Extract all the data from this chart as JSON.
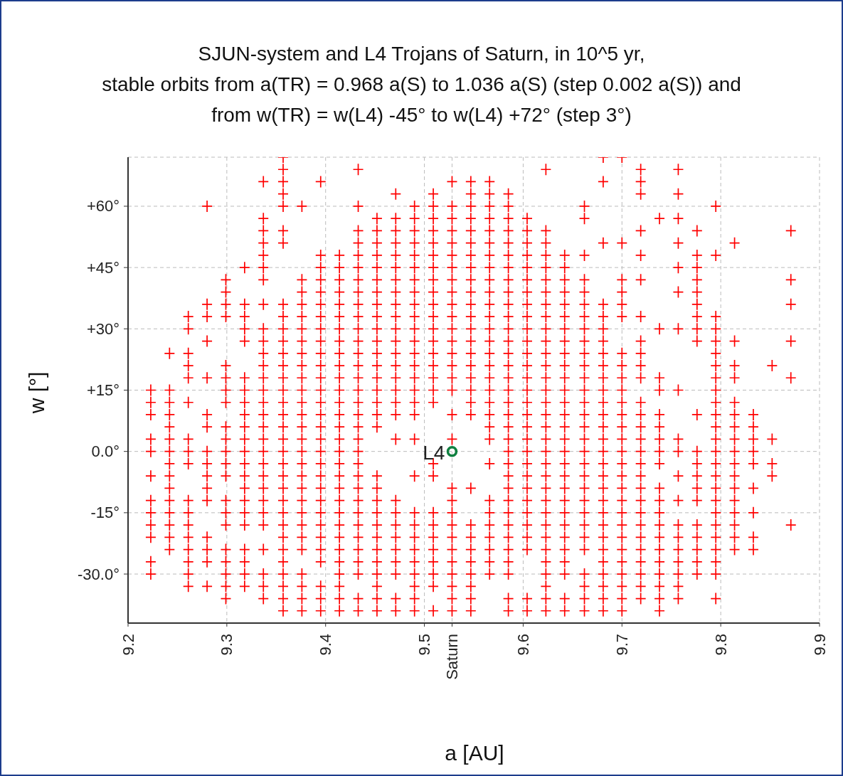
{
  "chart_data": {
    "type": "scatter",
    "title": "SJUN-system and L4 Trojans of Saturn, in 10^5 yr,\nstable orbits from a(TR) = 0.968 a(S) to 1.036 a(S) (step 0.002 a(S)) and\nfrom w(TR) = w(L4) -45° to w(L4) +72° (step 3°)",
    "xlabel": "a [AU]",
    "ylabel": "w [°]",
    "xlim": [
      9.2,
      9.9
    ],
    "xticks": [
      9.2,
      9.3,
      9.4,
      9.5,
      {
        "value": 9.528,
        "label": "Saturn"
      },
      9.6,
      9.7,
      9.8,
      9.9
    ],
    "ylim": [
      -42,
      72
    ],
    "yticks": [
      {
        "value": -30,
        "label": "-30.0°"
      },
      {
        "value": -15,
        "label": "-15°"
      },
      {
        "value": 0,
        "label": "0.0°"
      },
      {
        "value": 15,
        "label": "+15°"
      },
      {
        "value": 30,
        "label": "+30°"
      },
      {
        "value": 45,
        "label": "+45°"
      },
      {
        "value": 60,
        "label": "+60°"
      }
    ],
    "grid": true,
    "marker": "cross",
    "series": [
      {
        "color": "#ff0000",
        "x": [
          9.223,
          9.223,
          9.223,
          9.223,
          9.223,
          9.223,
          9.223,
          9.223,
          9.223,
          9.223,
          9.223,
          9.223
        ],
        "values": [
          15,
          12,
          9,
          3,
          0,
          -6,
          -12,
          -15,
          -18,
          -21,
          -27,
          -30
        ]
      },
      {
        "color": "#ff0000",
        "x": [
          9.242,
          9.242,
          9.242,
          9.242,
          9.242,
          9.242,
          9.242,
          9.242,
          9.242,
          9.242,
          9.242,
          9.242,
          9.242,
          9.242,
          9.242
        ],
        "values": [
          24,
          15,
          12,
          9,
          6,
          3,
          0,
          -3,
          -6,
          -9,
          -12,
          -15,
          -18,
          -21,
          -24
        ]
      },
      {
        "color": "#ff0000",
        "x": [
          9.261,
          9.261,
          9.261,
          9.261,
          9.261,
          9.261,
          9.261,
          9.261,
          9.261,
          9.261,
          9.261,
          9.261,
          9.261,
          9.261,
          9.261,
          9.261,
          9.261
        ],
        "values": [
          33,
          30,
          24,
          21,
          18,
          12,
          3,
          0,
          -3,
          -12,
          -15,
          -18,
          -21,
          -24,
          -27,
          -30,
          -33
        ]
      },
      {
        "color": "#ff0000",
        "x": [
          9.28,
          9.28,
          9.28,
          9.28,
          9.28,
          9.28,
          9.28,
          9.28,
          9.28,
          9.28,
          9.28,
          9.28,
          9.28,
          9.28,
          9.28,
          9.28
        ],
        "values": [
          60,
          36,
          33,
          27,
          18,
          9,
          6,
          0,
          -3,
          -6,
          -9,
          -12,
          -21,
          -24,
          -27,
          -33
        ]
      },
      {
        "color": "#ff0000",
        "x": [
          9.299,
          9.299,
          9.299,
          9.299,
          9.299,
          9.299,
          9.299,
          9.299,
          9.299,
          9.299,
          9.299,
          9.299,
          9.299,
          9.299,
          9.299,
          9.299,
          9.299,
          9.299,
          9.299,
          9.299,
          9.299
        ],
        "values": [
          42,
          39,
          36,
          33,
          21,
          18,
          15,
          12,
          6,
          3,
          0,
          -3,
          -6,
          -12,
          -15,
          -18,
          -24,
          -27,
          -30,
          -33,
          -36
        ]
      },
      {
        "color": "#ff0000",
        "x": [
          9.318,
          9.318,
          9.318,
          9.318,
          9.318,
          9.318,
          9.318,
          9.318,
          9.318,
          9.318,
          9.318,
          9.318,
          9.318,
          9.318,
          9.318,
          9.318,
          9.318,
          9.318,
          9.318,
          9.318,
          9.318,
          9.318
        ],
        "values": [
          45,
          36,
          33,
          30,
          27,
          18,
          15,
          12,
          9,
          6,
          3,
          0,
          -3,
          -6,
          -9,
          -12,
          -15,
          -18,
          -24,
          -27,
          -30,
          -33
        ]
      },
      {
        "color": "#ff0000",
        "x": [
          9.337,
          9.337,
          9.337,
          9.337,
          9.337,
          9.337,
          9.337,
          9.337,
          9.337,
          9.337,
          9.337,
          9.337,
          9.337,
          9.337,
          9.337,
          9.337,
          9.337,
          9.337,
          9.337,
          9.337,
          9.337,
          9.337,
          9.337,
          9.337,
          9.337,
          9.337,
          9.337,
          9.337,
          9.337
        ],
        "values": [
          66,
          57,
          54,
          51,
          48,
          45,
          42,
          36,
          30,
          27,
          24,
          21,
          18,
          15,
          12,
          9,
          6,
          3,
          0,
          -3,
          -6,
          -9,
          -12,
          -15,
          -18,
          -24,
          -30,
          -33,
          -36
        ]
      },
      {
        "color": "#ff0000",
        "x": [
          9.357,
          9.357,
          9.357,
          9.357,
          9.357,
          9.357,
          9.357,
          9.357,
          9.357,
          9.357,
          9.357,
          9.357,
          9.357,
          9.357,
          9.357,
          9.357,
          9.357,
          9.357,
          9.357,
          9.357,
          9.357,
          9.357,
          9.357,
          9.357,
          9.357,
          9.357,
          9.357,
          9.357,
          9.357,
          9.357,
          9.357,
          9.357,
          9.357
        ],
        "values": [
          72,
          69,
          66,
          63,
          60,
          54,
          51,
          36,
          33,
          30,
          27,
          24,
          21,
          18,
          15,
          12,
          9,
          6,
          3,
          0,
          -3,
          -6,
          -9,
          -12,
          -15,
          -18,
          -21,
          -24,
          -27,
          -30,
          -33,
          -36,
          -39
        ]
      },
      {
        "color": "#ff0000",
        "x": [
          9.376,
          9.376,
          9.376,
          9.376,
          9.376,
          9.376,
          9.376,
          9.376,
          9.376,
          9.376,
          9.376,
          9.376,
          9.376,
          9.376,
          9.376,
          9.376,
          9.376,
          9.376,
          9.376,
          9.376,
          9.376,
          9.376,
          9.376,
          9.376,
          9.376,
          9.376,
          9.376,
          9.376
        ],
        "values": [
          60,
          42,
          39,
          36,
          33,
          30,
          27,
          24,
          21,
          18,
          15,
          12,
          9,
          6,
          3,
          0,
          -3,
          -6,
          -9,
          -12,
          -15,
          -18,
          -21,
          -24,
          -30,
          -33,
          -36,
          -39
        ]
      },
      {
        "color": "#ff0000",
        "x": [
          9.395,
          9.395,
          9.395,
          9.395,
          9.395,
          9.395,
          9.395,
          9.395,
          9.395,
          9.395,
          9.395,
          9.395,
          9.395,
          9.395,
          9.395,
          9.395,
          9.395,
          9.395,
          9.395,
          9.395,
          9.395,
          9.395,
          9.395,
          9.395,
          9.395,
          9.395,
          9.395,
          9.395,
          9.395,
          9.395
        ],
        "values": [
          66,
          48,
          45,
          42,
          39,
          36,
          33,
          30,
          27,
          24,
          21,
          18,
          15,
          12,
          9,
          6,
          3,
          0,
          -3,
          -6,
          -9,
          -12,
          -15,
          -18,
          -21,
          -24,
          -27,
          -33,
          -36,
          -39
        ]
      },
      {
        "color": "#ff0000",
        "x": [
          9.414,
          9.414,
          9.414,
          9.414,
          9.414,
          9.414,
          9.414,
          9.414,
          9.414,
          9.414,
          9.414,
          9.414,
          9.414,
          9.414,
          9.414,
          9.414,
          9.414,
          9.414,
          9.414,
          9.414,
          9.414,
          9.414,
          9.414,
          9.414,
          9.414,
          9.414,
          9.414,
          9.414,
          9.414,
          9.414
        ],
        "values": [
          48,
          45,
          42,
          39,
          36,
          33,
          30,
          27,
          24,
          21,
          18,
          15,
          12,
          9,
          6,
          3,
          0,
          -3,
          -6,
          -9,
          -12,
          -15,
          -18,
          -21,
          -24,
          -27,
          -30,
          -33,
          -36,
          -39
        ]
      },
      {
        "color": "#ff0000",
        "x": [
          9.433,
          9.433,
          9.433,
          9.433,
          9.433,
          9.433,
          9.433,
          9.433,
          9.433,
          9.433,
          9.433,
          9.433,
          9.433,
          9.433,
          9.433,
          9.433,
          9.433,
          9.433,
          9.433,
          9.433,
          9.433,
          9.433,
          9.433,
          9.433,
          9.433,
          9.433,
          9.433,
          9.433,
          9.433,
          9.433,
          9.433,
          9.433,
          9.433
        ],
        "values": [
          69,
          60,
          54,
          51,
          48,
          45,
          42,
          39,
          36,
          33,
          30,
          27,
          24,
          21,
          18,
          15,
          12,
          9,
          6,
          3,
          0,
          -3,
          -6,
          -9,
          -12,
          -15,
          -18,
          -21,
          -24,
          -27,
          -30,
          -36,
          -39
        ]
      },
      {
        "color": "#ff0000",
        "x": [
          9.452,
          9.452,
          9.452,
          9.452,
          9.452,
          9.452,
          9.452,
          9.452,
          9.452,
          9.452,
          9.452,
          9.452,
          9.452,
          9.452,
          9.452,
          9.452,
          9.452,
          9.452,
          9.452,
          9.452,
          9.452,
          9.452,
          9.452,
          9.452,
          9.452,
          9.452,
          9.452,
          9.452,
          9.452,
          9.452
        ],
        "values": [
          57,
          54,
          51,
          48,
          45,
          42,
          39,
          36,
          33,
          30,
          27,
          24,
          21,
          18,
          15,
          12,
          9,
          6,
          -6,
          -9,
          -12,
          -15,
          -18,
          -21,
          -24,
          -27,
          -30,
          -33,
          -36,
          -39
        ]
      },
      {
        "color": "#ff0000",
        "x": [
          9.471,
          9.471,
          9.471,
          9.471,
          9.471,
          9.471,
          9.471,
          9.471,
          9.471,
          9.471,
          9.471,
          9.471,
          9.471,
          9.471,
          9.471,
          9.471,
          9.471,
          9.471,
          9.471,
          9.471,
          9.471,
          9.471,
          9.471,
          9.471,
          9.471,
          9.471,
          9.471,
          9.471
        ],
        "values": [
          63,
          57,
          54,
          51,
          48,
          45,
          42,
          39,
          36,
          33,
          30,
          27,
          24,
          21,
          18,
          15,
          12,
          9,
          3,
          -12,
          -15,
          -18,
          -21,
          -24,
          -27,
          -30,
          -36,
          -39
        ]
      },
      {
        "color": "#ff0000",
        "x": [
          9.49,
          9.49,
          9.49,
          9.49,
          9.49,
          9.49,
          9.49,
          9.49,
          9.49,
          9.49,
          9.49,
          9.49,
          9.49,
          9.49,
          9.49,
          9.49,
          9.49,
          9.49,
          9.49,
          9.49,
          9.49,
          9.49,
          9.49,
          9.49,
          9.49,
          9.49,
          9.49,
          9.49,
          9.49
        ],
        "values": [
          60,
          57,
          54,
          51,
          48,
          45,
          42,
          39,
          36,
          33,
          30,
          27,
          24,
          21,
          18,
          15,
          12,
          9,
          3,
          -6,
          -15,
          -18,
          -21,
          -24,
          -27,
          -30,
          -33,
          -36,
          -39
        ]
      },
      {
        "color": "#ff0000",
        "x": [
          9.509,
          9.509,
          9.509,
          9.509,
          9.509,
          9.509,
          9.509,
          9.509,
          9.509,
          9.509,
          9.509,
          9.509,
          9.509,
          9.509,
          9.509,
          9.509,
          9.509,
          9.509,
          9.509,
          9.509,
          9.509,
          9.509,
          9.509,
          9.509,
          9.509,
          9.509,
          9.509,
          9.509
        ],
        "values": [
          63,
          60,
          57,
          54,
          51,
          48,
          45,
          42,
          39,
          36,
          33,
          30,
          27,
          24,
          21,
          18,
          15,
          12,
          -3,
          -6,
          -15,
          -18,
          -21,
          -24,
          -27,
          -30,
          -33,
          -39
        ]
      },
      {
        "color": "#ff0000",
        "x": [
          9.528,
          9.528,
          9.528,
          9.528,
          9.528,
          9.528,
          9.528,
          9.528,
          9.528,
          9.528,
          9.528,
          9.528,
          9.528,
          9.528,
          9.528,
          9.528,
          9.528,
          9.528,
          9.528,
          9.528,
          9.528,
          9.528,
          9.528,
          9.528,
          9.528,
          9.528,
          9.528,
          9.528,
          9.528,
          9.528
        ],
        "values": [
          66,
          60,
          57,
          54,
          51,
          48,
          45,
          42,
          39,
          36,
          33,
          30,
          27,
          24,
          21,
          18,
          15,
          9,
          3,
          -9,
          -12,
          -15,
          -18,
          -21,
          -24,
          -27,
          -30,
          -33,
          -36,
          -39
        ]
      },
      {
        "color": "#ff0000",
        "x": [
          9.547,
          9.547,
          9.547,
          9.547,
          9.547,
          9.547,
          9.547,
          9.547,
          9.547,
          9.547,
          9.547,
          9.547,
          9.547,
          9.547,
          9.547,
          9.547,
          9.547,
          9.547,
          9.547,
          9.547,
          9.547,
          9.547,
          9.547,
          9.547,
          9.547,
          9.547,
          9.547,
          9.547,
          9.547
        ],
        "values": [
          66,
          63,
          60,
          57,
          54,
          51,
          48,
          45,
          42,
          39,
          36,
          33,
          30,
          27,
          24,
          21,
          18,
          15,
          12,
          9,
          -9,
          -18,
          -21,
          -24,
          -27,
          -30,
          -33,
          -36,
          -39
        ]
      },
      {
        "color": "#ff0000",
        "x": [
          9.566,
          9.566,
          9.566,
          9.566,
          9.566,
          9.566,
          9.566,
          9.566,
          9.566,
          9.566,
          9.566,
          9.566,
          9.566,
          9.566,
          9.566,
          9.566,
          9.566,
          9.566,
          9.566,
          9.566,
          9.566,
          9.566,
          9.566,
          9.566,
          9.566,
          9.566,
          9.566,
          9.566,
          9.566,
          9.566
        ],
        "values": [
          66,
          63,
          60,
          57,
          54,
          51,
          48,
          45,
          42,
          39,
          36,
          33,
          30,
          27,
          24,
          21,
          18,
          15,
          12,
          9,
          6,
          3,
          -3,
          -12,
          -15,
          -18,
          -21,
          -24,
          -27,
          -30
        ]
      },
      {
        "color": "#ff0000",
        "x": [
          9.585,
          9.585,
          9.585,
          9.585,
          9.585,
          9.585,
          9.585,
          9.585,
          9.585,
          9.585,
          9.585,
          9.585,
          9.585,
          9.585,
          9.585,
          9.585,
          9.585,
          9.585,
          9.585,
          9.585,
          9.585,
          9.585,
          9.585,
          9.585,
          9.585,
          9.585,
          9.585,
          9.585,
          9.585,
          9.585,
          9.585,
          9.585,
          9.585,
          9.585
        ],
        "values": [
          63,
          60,
          57,
          54,
          51,
          48,
          45,
          42,
          39,
          36,
          33,
          30,
          27,
          24,
          21,
          18,
          15,
          12,
          9,
          6,
          3,
          0,
          -3,
          -6,
          -9,
          -12,
          -15,
          -18,
          -21,
          -24,
          -27,
          -30,
          -36,
          -39
        ]
      },
      {
        "color": "#ff0000",
        "x": [
          9.604,
          9.604,
          9.604,
          9.604,
          9.604,
          9.604,
          9.604,
          9.604,
          9.604,
          9.604,
          9.604,
          9.604,
          9.604,
          9.604,
          9.604,
          9.604,
          9.604,
          9.604,
          9.604,
          9.604,
          9.604,
          9.604,
          9.604,
          9.604,
          9.604,
          9.604,
          9.604,
          9.604,
          9.604,
          9.604
        ],
        "values": [
          57,
          54,
          51,
          48,
          45,
          42,
          39,
          36,
          33,
          30,
          27,
          24,
          21,
          18,
          15,
          12,
          9,
          6,
          3,
          0,
          -3,
          -6,
          -9,
          -12,
          -15,
          -18,
          -21,
          -24,
          -36,
          -39
        ]
      },
      {
        "color": "#ff0000",
        "x": [
          9.623,
          9.623,
          9.623,
          9.623,
          9.623,
          9.623,
          9.623,
          9.623,
          9.623,
          9.623,
          9.623,
          9.623,
          9.623,
          9.623,
          9.623,
          9.623,
          9.623,
          9.623,
          9.623,
          9.623,
          9.623,
          9.623,
          9.623,
          9.623,
          9.623,
          9.623,
          9.623,
          9.623,
          9.623,
          9.623,
          9.623,
          9.623,
          9.623
        ],
        "values": [
          69,
          54,
          51,
          48,
          45,
          42,
          39,
          36,
          33,
          30,
          27,
          24,
          21,
          18,
          15,
          12,
          9,
          6,
          3,
          0,
          -3,
          -6,
          -9,
          -12,
          -15,
          -18,
          -21,
          -24,
          -27,
          -30,
          -33,
          -36,
          -39
        ]
      },
      {
        "color": "#ff0000",
        "x": [
          9.642,
          9.642,
          9.642,
          9.642,
          9.642,
          9.642,
          9.642,
          9.642,
          9.642,
          9.642,
          9.642,
          9.642,
          9.642,
          9.642,
          9.642,
          9.642,
          9.642,
          9.642,
          9.642,
          9.642,
          9.642,
          9.642,
          9.642,
          9.642,
          9.642,
          9.642,
          9.642,
          9.642,
          9.642
        ],
        "values": [
          48,
          45,
          42,
          39,
          36,
          33,
          30,
          27,
          24,
          21,
          18,
          15,
          12,
          9,
          6,
          3,
          0,
          -3,
          -6,
          -9,
          -12,
          -15,
          -18,
          -21,
          -24,
          -27,
          -30,
          -36,
          -39
        ]
      },
      {
        "color": "#ff0000",
        "x": [
          9.662,
          9.662,
          9.662,
          9.662,
          9.662,
          9.662,
          9.662,
          9.662,
          9.662,
          9.662,
          9.662,
          9.662,
          9.662,
          9.662,
          9.662,
          9.662,
          9.662,
          9.662,
          9.662,
          9.662,
          9.662,
          9.662,
          9.662,
          9.662,
          9.662,
          9.662,
          9.662,
          9.662,
          9.662,
          9.662
        ],
        "values": [
          60,
          57,
          48,
          42,
          39,
          36,
          33,
          30,
          27,
          24,
          21,
          18,
          15,
          12,
          9,
          6,
          3,
          0,
          -3,
          -6,
          -9,
          -12,
          -15,
          -18,
          -21,
          -24,
          -30,
          -33,
          -36,
          -39
        ]
      },
      {
        "color": "#ff0000",
        "x": [
          9.681,
          9.681,
          9.681,
          9.681,
          9.681,
          9.681,
          9.681,
          9.681,
          9.681,
          9.681,
          9.681,
          9.681,
          9.681,
          9.681,
          9.681,
          9.681,
          9.681,
          9.681,
          9.681,
          9.681,
          9.681,
          9.681,
          9.681,
          9.681,
          9.681,
          9.681,
          9.681,
          9.681,
          9.681
        ],
        "values": [
          72,
          66,
          51,
          36,
          33,
          30,
          27,
          24,
          21,
          18,
          15,
          12,
          9,
          6,
          3,
          0,
          -3,
          -6,
          -9,
          -12,
          -15,
          -18,
          -21,
          -24,
          -27,
          -30,
          -33,
          -36,
          -39
        ]
      },
      {
        "color": "#ff0000",
        "x": [
          9.7,
          9.7,
          9.7,
          9.7,
          9.7,
          9.7,
          9.7,
          9.7,
          9.7,
          9.7,
          9.7,
          9.7,
          9.7,
          9.7,
          9.7,
          9.7,
          9.7,
          9.7,
          9.7,
          9.7,
          9.7,
          9.7,
          9.7,
          9.7,
          9.7,
          9.7,
          9.7,
          9.7
        ],
        "values": [
          72,
          51,
          42,
          39,
          36,
          33,
          24,
          21,
          18,
          15,
          12,
          9,
          6,
          3,
          0,
          -3,
          -6,
          -9,
          -12,
          -15,
          -18,
          -21,
          -24,
          -27,
          -30,
          -33,
          -36,
          -39
        ]
      },
      {
        "color": "#ff0000",
        "x": [
          9.719,
          9.719,
          9.719,
          9.719,
          9.719,
          9.719,
          9.719,
          9.719,
          9.719,
          9.719,
          9.719,
          9.719,
          9.719,
          9.719,
          9.719,
          9.719,
          9.719,
          9.719,
          9.719,
          9.719,
          9.719,
          9.719,
          9.719,
          9.719,
          9.719,
          9.719,
          9.719,
          9.719
        ],
        "values": [
          69,
          66,
          63,
          54,
          48,
          42,
          33,
          27,
          24,
          21,
          18,
          12,
          9,
          6,
          3,
          0,
          -3,
          -6,
          -9,
          -12,
          -15,
          -18,
          -21,
          -24,
          -27,
          -30,
          -33,
          -36
        ]
      },
      {
        "color": "#ff0000",
        "x": [
          9.738,
          9.738,
          9.738,
          9.738,
          9.738,
          9.738,
          9.738,
          9.738,
          9.738,
          9.738,
          9.738,
          9.738,
          9.738,
          9.738,
          9.738,
          9.738,
          9.738,
          9.738,
          9.738,
          9.738
        ],
        "values": [
          57,
          30,
          18,
          15,
          9,
          6,
          3,
          0,
          -3,
          -9,
          -12,
          -15,
          -18,
          -21,
          -24,
          -27,
          -30,
          -33,
          -36,
          -39
        ]
      },
      {
        "color": "#ff0000",
        "x": [
          9.757,
          9.757,
          9.757,
          9.757,
          9.757,
          9.757,
          9.757,
          9.757,
          9.757,
          9.757,
          9.757,
          9.757,
          9.757,
          9.757,
          9.757,
          9.757,
          9.757,
          9.757,
          9.757
        ],
        "values": [
          69,
          63,
          57,
          51,
          45,
          39,
          30,
          15,
          3,
          0,
          -6,
          -12,
          -18,
          -21,
          -24,
          -27,
          -30,
          -33,
          -36
        ]
      },
      {
        "color": "#ff0000",
        "x": [
          9.776,
          9.776,
          9.776,
          9.776,
          9.776,
          9.776,
          9.776,
          9.776,
          9.776,
          9.776,
          9.776,
          9.776,
          9.776,
          9.776,
          9.776,
          9.776,
          9.776,
          9.776,
          9.776,
          9.776
        ],
        "values": [
          54,
          48,
          45,
          42,
          39,
          36,
          33,
          30,
          27,
          9,
          0,
          -3,
          -6,
          -9,
          -12,
          -18,
          -21,
          -24,
          -27,
          -30
        ]
      },
      {
        "color": "#ff0000",
        "x": [
          9.795,
          9.795,
          9.795,
          9.795,
          9.795,
          9.795,
          9.795,
          9.795,
          9.795,
          9.795,
          9.795,
          9.795,
          9.795,
          9.795,
          9.795,
          9.795,
          9.795,
          9.795,
          9.795,
          9.795,
          9.795,
          9.795,
          9.795,
          9.795,
          9.795
        ],
        "values": [
          60,
          48,
          33,
          30,
          27,
          24,
          21,
          18,
          15,
          12,
          9,
          6,
          3,
          0,
          -3,
          -6,
          -9,
          -12,
          -15,
          -18,
          -21,
          -24,
          -27,
          -30,
          -36
        ]
      },
      {
        "color": "#ff0000",
        "x": [
          9.814,
          9.814,
          9.814,
          9.814,
          9.814,
          9.814,
          9.814,
          9.814,
          9.814,
          9.814,
          9.814,
          9.814,
          9.814,
          9.814,
          9.814,
          9.814,
          9.814
        ],
        "values": [
          51,
          27,
          21,
          18,
          12,
          9,
          6,
          3,
          0,
          -3,
          -6,
          -9,
          -12,
          -15,
          -18,
          -21,
          -24
        ]
      },
      {
        "color": "#ff0000",
        "x": [
          9.833,
          9.833,
          9.833,
          9.833,
          9.833,
          9.833,
          9.833,
          9.833,
          9.833
        ],
        "values": [
          9,
          6,
          3,
          0,
          -3,
          -9,
          -15,
          -21,
          -24
        ]
      },
      {
        "color": "#ff0000",
        "x": [
          9.852,
          9.852,
          9.852,
          9.852
        ],
        "values": [
          21,
          3,
          -3,
          -6
        ]
      },
      {
        "color": "#ff0000",
        "x": [
          9.871,
          9.871,
          9.871,
          9.871,
          9.871,
          9.871
        ],
        "values": [
          54,
          42,
          36,
          27,
          18,
          -18
        ]
      },
      {
        "name": "L4",
        "color": "#108040",
        "marker": "circle",
        "x": [
          9.528
        ],
        "values": [
          0
        ]
      }
    ]
  }
}
